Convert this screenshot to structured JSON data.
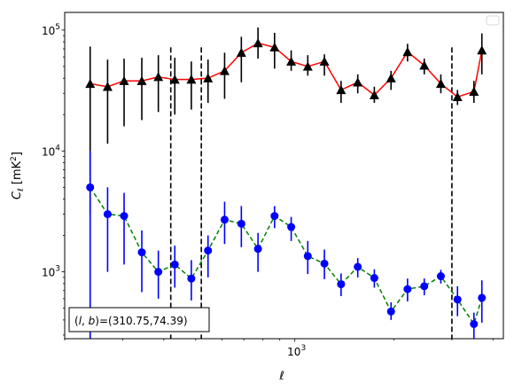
{
  "chart_data": {
    "type": "line",
    "xlabel": "ℓ",
    "ylabel": "C_ℓ [mK²]",
    "ylabel_parts": {
      "c": "C",
      "sub": "ℓ",
      "unit_open": " [mK",
      "unit_sup": "2",
      "unit_close": "]"
    },
    "xscale": "log",
    "yscale": "log",
    "xlim": [
      200,
      4300
    ],
    "ylim": [
      280,
      140000
    ],
    "x_tick_labels": [
      {
        "base": "10",
        "exp": "3",
        "value": 1000
      }
    ],
    "y_tick_labels": [
      {
        "base": "10",
        "exp": "3",
        "value": 1000
      },
      {
        "base": "10",
        "exp": "4",
        "value": 10000
      },
      {
        "base": "10",
        "exp": "5",
        "value": 100000
      }
    ],
    "legend": "top-right (empty)",
    "vlines": [
      420,
      520,
      3000
    ],
    "annotation": "(l, b)=(310.75,74.39)",
    "annotation_parts": {
      "open": "(",
      "l": "l",
      "comma": ", ",
      "b": "b",
      "rest": ")=(310.75,74.39)"
    },
    "series": [
      {
        "color_line": "#ff0000",
        "color_marker": "#000000",
        "marker": "triangle",
        "line_style": "solid",
        "x": [
          239,
          270,
          303,
          343,
          385,
          432,
          485,
          545,
          612,
          688,
          773,
          868,
          975,
          1095,
          1230,
          1382,
          1553,
          1744,
          1960,
          2200,
          2473,
          2777,
          3120,
          3500,
          3700
        ],
        "y": [
          36000,
          34000,
          38000,
          38000,
          41000,
          39000,
          39000,
          40000,
          46000,
          65000,
          78000,
          72000,
          55000,
          50000,
          55000,
          32000,
          37000,
          29000,
          40000,
          66000,
          51000,
          36000,
          28000,
          31000,
          68000
        ],
        "y_low": [
          3000,
          11500,
          16000,
          18000,
          21000,
          20000,
          22000,
          25000,
          27000,
          37000,
          58000,
          48000,
          46000,
          42000,
          42000,
          25000,
          30000,
          25000,
          32000,
          55000,
          43000,
          30000,
          24000,
          25000,
          43000
        ],
        "y_high": [
          73000,
          57000,
          58000,
          59000,
          62000,
          59000,
          55000,
          57000,
          65000,
          88000,
          105000,
          95000,
          68000,
          62000,
          63000,
          38000,
          43000,
          34000,
          46000,
          77000,
          58000,
          43000,
          32000,
          38000,
          94000
        ]
      },
      {
        "color_line": "#008000",
        "color_marker": "#0000ff",
        "marker": "circle",
        "line_style": "dashed",
        "x": [
          239,
          270,
          303,
          343,
          385,
          432,
          485,
          545,
          612,
          688,
          773,
          868,
          975,
          1095,
          1230,
          1382,
          1553,
          1744,
          1960,
          2200,
          2473,
          2777,
          3120,
          3500,
          3700
        ],
        "y": [
          5000,
          3000,
          2900,
          1450,
          1000,
          1150,
          880,
          1500,
          2700,
          2500,
          1550,
          2900,
          2350,
          1350,
          1170,
          790,
          1100,
          890,
          470,
          720,
          760,
          920,
          590,
          370,
          610
        ],
        "y_low": [
          280,
          1000,
          1150,
          680,
          600,
          740,
          580,
          900,
          1700,
          1600,
          1000,
          2300,
          1800,
          960,
          870,
          630,
          900,
          740,
          400,
          570,
          640,
          800,
          430,
          280,
          380
        ],
        "y_high": [
          10000,
          5000,
          4500,
          2200,
          1500,
          1650,
          1250,
          2000,
          3800,
          3500,
          2100,
          3500,
          2850,
          1800,
          1530,
          970,
          1300,
          1050,
          560,
          880,
          880,
          1040,
          760,
          460,
          850
        ]
      }
    ]
  }
}
